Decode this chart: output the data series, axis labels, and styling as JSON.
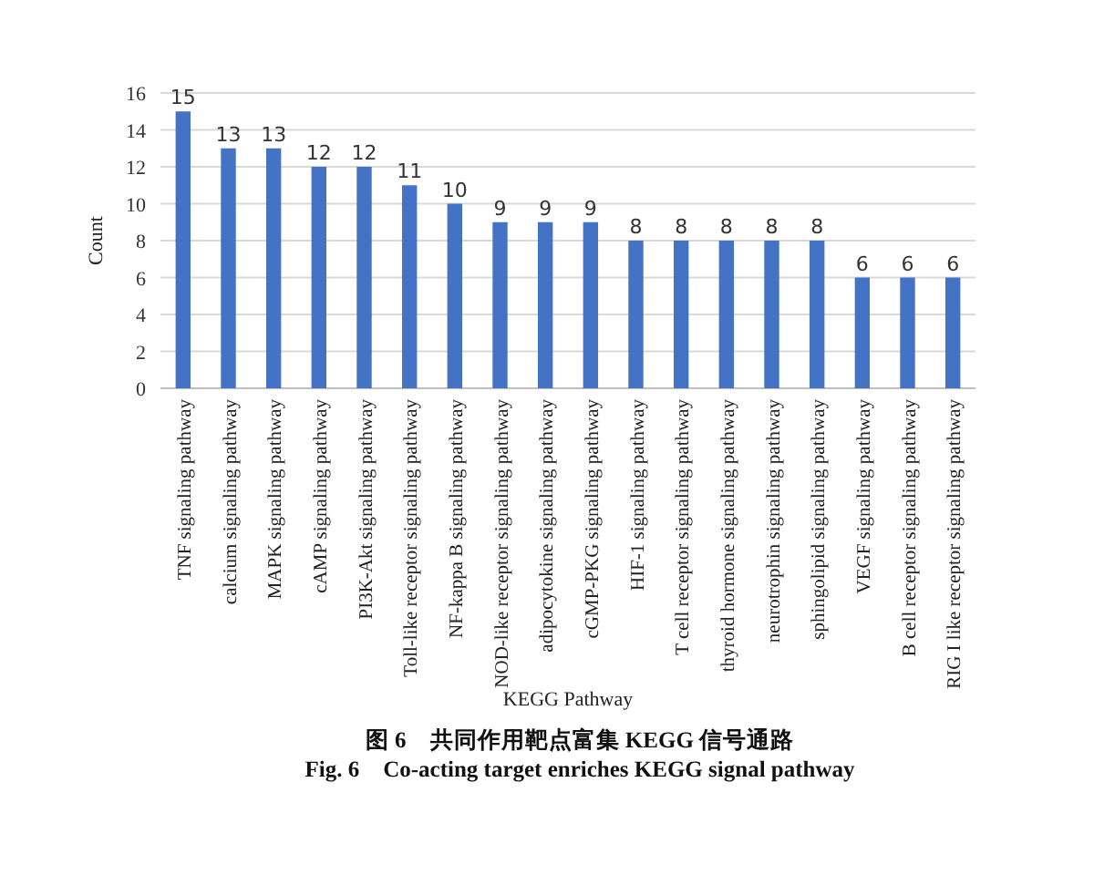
{
  "chart_data": {
    "type": "bar",
    "xlabel": "KEGG Pathway",
    "ylabel": "Count",
    "categories": [
      "TNF signaling pathway",
      "calcium signaling pathway",
      "MAPK signaling pathway",
      "cAMP signaling pathway",
      "PI3K-Akt signaling pathway",
      "Toll-like receptor signaling pathway",
      "NF-kappa B signaling pathway",
      "NOD-like receptor signaling pathway",
      "adipocytokine signaling pathway",
      "cGMP-PKG signaling pathway",
      "HIF-1 signaling pathway",
      "T cell receptor signaling pathway",
      "thyroid hormone signaling pathway",
      "neurotrophin signaling pathway",
      "sphingolipid signaling pathway",
      "VEGF signaling pathway",
      "B cell receptor signaling pathway",
      "RIG I like receptor signaling pathway"
    ],
    "values": [
      15,
      13,
      13,
      12,
      12,
      11,
      10,
      9,
      9,
      9,
      8,
      8,
      8,
      8,
      8,
      6,
      6,
      6
    ],
    "color": "#4472c4",
    "ylim": [
      0,
      16
    ],
    "yticks": [
      0,
      2,
      4,
      6,
      8,
      10,
      12,
      14,
      16
    ],
    "grid": "y",
    "data_labels": true,
    "annotations": [
      "图 6　共同作用靶点富集 KEGG 信号通路",
      "Fig. 6　Co-acting target enriches KEGG signal pathway"
    ]
  }
}
